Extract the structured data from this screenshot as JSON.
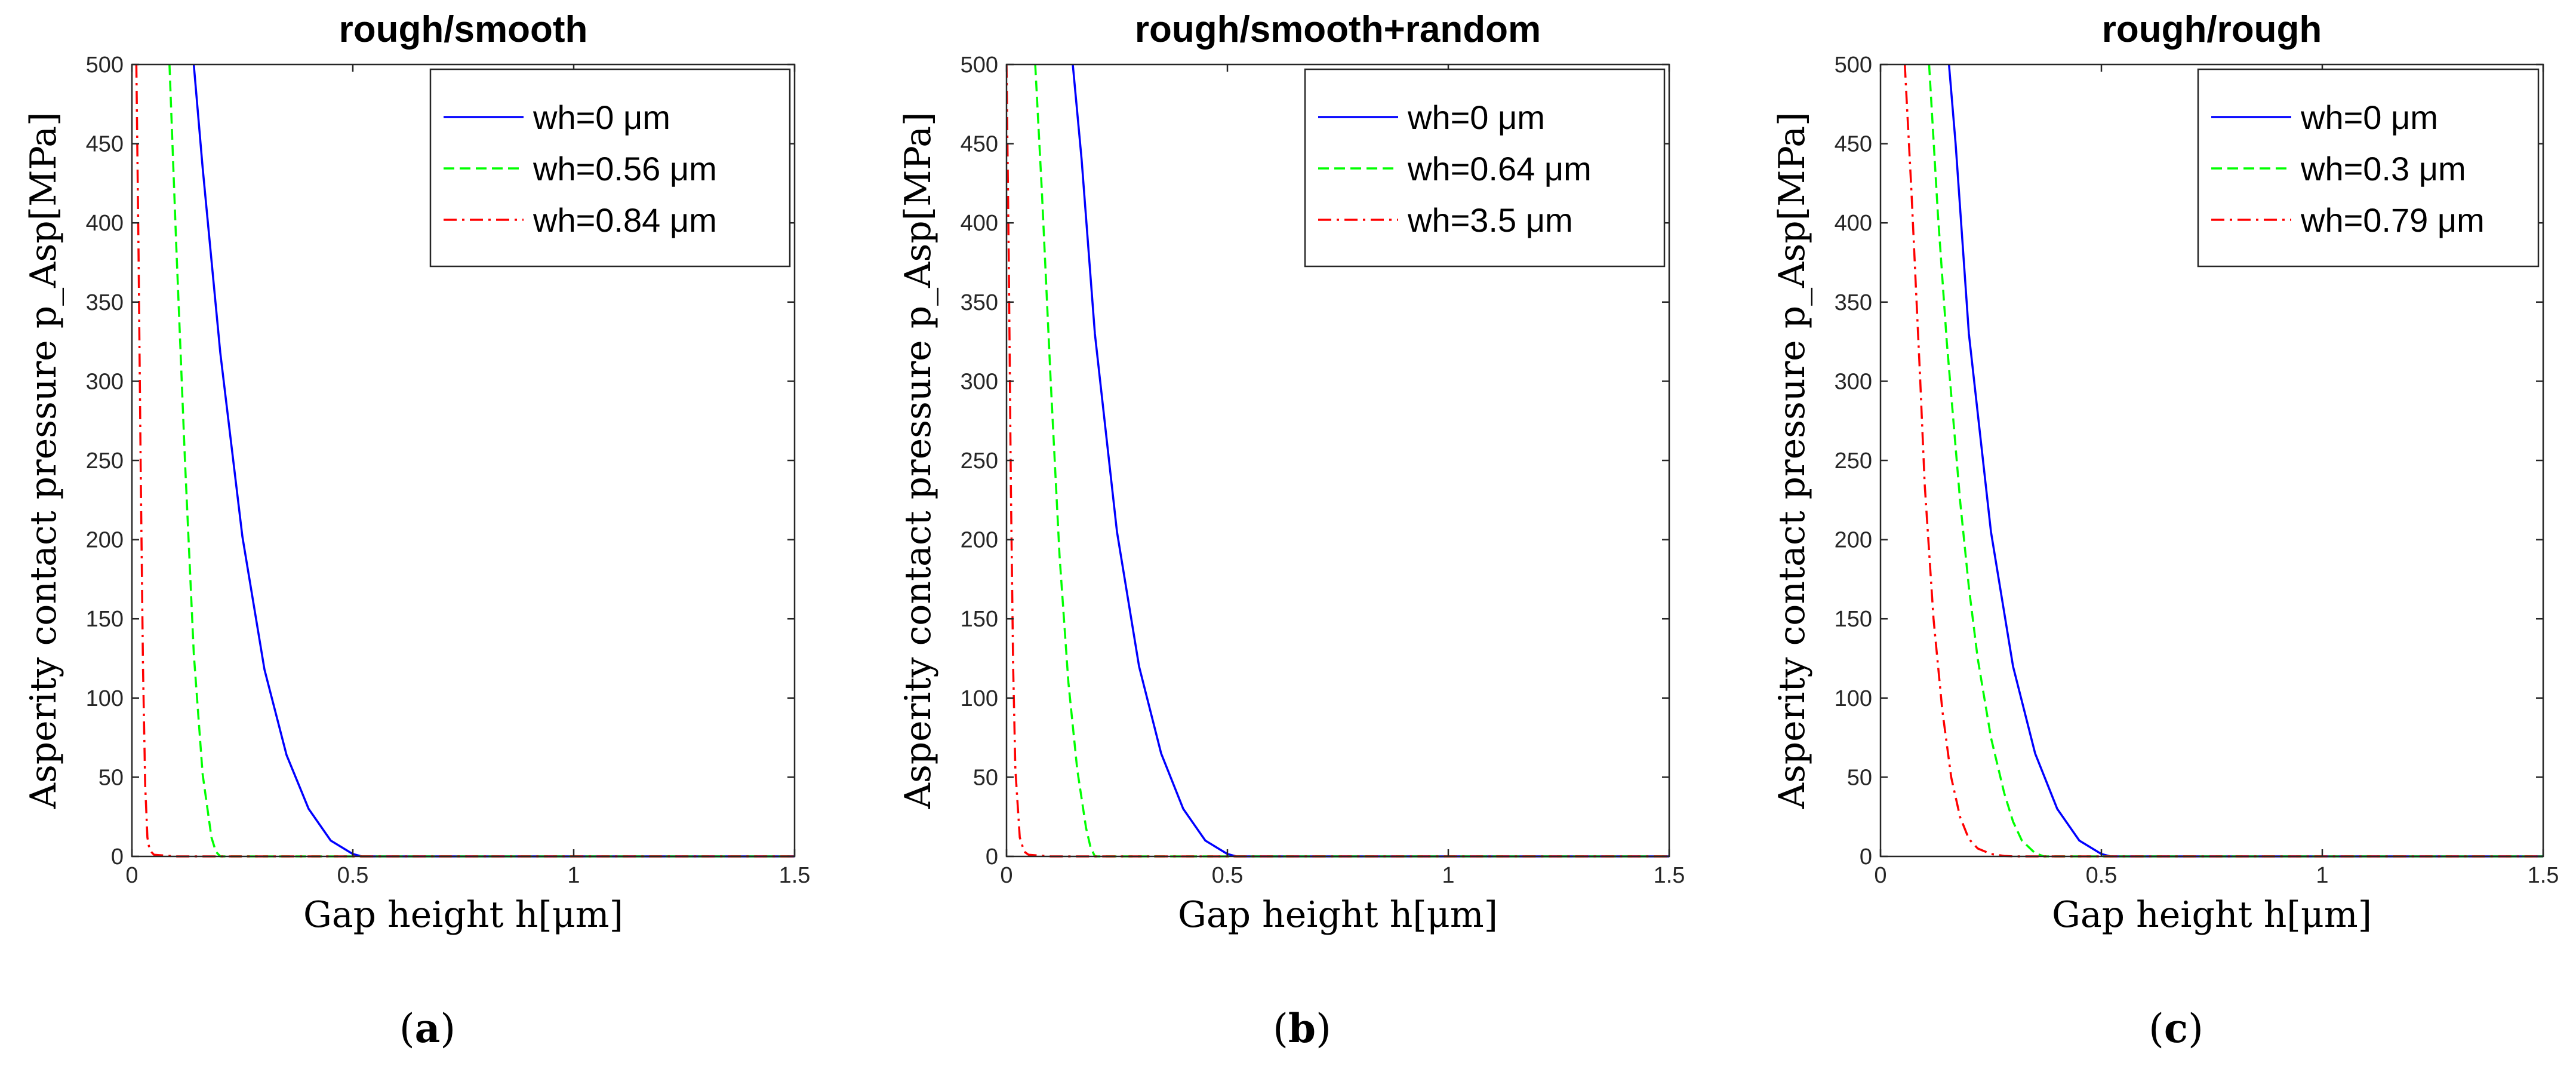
{
  "figure": {
    "panels": [
      {
        "caption_letter": "a"
      },
      {
        "caption_letter": "b"
      },
      {
        "caption_letter": "c"
      }
    ]
  },
  "chart_data": [
    {
      "type": "line",
      "title": "rough/smooth",
      "xlabel": "Gap height h[μm]",
      "ylabel": "Asperity contact pressure p_Asp[MPa]",
      "xlim": [
        0,
        1.5
      ],
      "ylim": [
        0,
        500
      ],
      "xticks": [
        "0",
        "0.5",
        "1",
        "1.5"
      ],
      "yticks": [
        "0",
        "50",
        "100",
        "150",
        "200",
        "250",
        "300",
        "350",
        "400",
        "450",
        "500"
      ],
      "legend_position": "top-right",
      "series": [
        {
          "name": "wh=0 μm",
          "color": "#0000ff",
          "style": "solid",
          "x": [
            0.14,
            0.16,
            0.2,
            0.25,
            0.3,
            0.35,
            0.4,
            0.45,
            0.5,
            0.52,
            0.6,
            0.8,
            1.0,
            1.2,
            1.5
          ],
          "y": [
            500,
            435,
            318,
            202,
            118,
            64,
            30,
            10,
            1.5,
            0,
            0,
            0,
            0,
            0,
            0
          ]
        },
        {
          "name": "wh=0.56 μm",
          "color": "#00ff00",
          "style": "dashed",
          "x": [
            0.085,
            0.1,
            0.12,
            0.14,
            0.16,
            0.18,
            0.19,
            0.2,
            0.3,
            0.5,
            0.8,
            1.0,
            1.2,
            1.5
          ],
          "y": [
            500,
            388,
            250,
            128,
            52,
            12,
            3,
            0,
            0,
            0,
            0,
            0,
            0,
            0
          ]
        },
        {
          "name": "wh=0.84 μm",
          "color": "#ff0000",
          "style": "dashdot",
          "x": [
            0.01,
            0.015,
            0.02,
            0.025,
            0.03,
            0.035,
            0.04,
            0.05,
            0.1,
            0.3,
            0.6,
            1.0,
            1.5
          ],
          "y": [
            500,
            380,
            240,
            120,
            45,
            12,
            4,
            1,
            0,
            0,
            0,
            0,
            0
          ]
        }
      ]
    },
    {
      "type": "line",
      "title": "rough/smooth+random",
      "xlabel": "Gap height h[μm]",
      "ylabel": "Asperity contact pressure p_Asp[MPa]",
      "xlim": [
        0,
        1.5
      ],
      "ylim": [
        0,
        500
      ],
      "xticks": [
        "0",
        "0.5",
        "1",
        "1.5"
      ],
      "yticks": [
        "0",
        "50",
        "100",
        "150",
        "200",
        "250",
        "300",
        "350",
        "400",
        "450",
        "500"
      ],
      "legend_position": "top-right",
      "series": [
        {
          "name": "wh=0 μm",
          "color": "#0000ff",
          "style": "solid",
          "x": [
            0.15,
            0.17,
            0.2,
            0.25,
            0.3,
            0.35,
            0.4,
            0.45,
            0.5,
            0.52,
            0.6,
            0.8,
            1.0,
            1.2,
            1.5
          ],
          "y": [
            500,
            440,
            330,
            205,
            120,
            65,
            30,
            10,
            1.5,
            0,
            0,
            0,
            0,
            0,
            0
          ]
        },
        {
          "name": "wh=0.64 μm",
          "color": "#00ff00",
          "style": "dashed",
          "x": [
            0.065,
            0.08,
            0.1,
            0.12,
            0.14,
            0.16,
            0.18,
            0.19,
            0.2,
            0.3,
            0.5,
            0.8,
            1.0,
            1.2,
            1.5
          ],
          "y": [
            500,
            420,
            300,
            190,
            110,
            55,
            18,
            6,
            0,
            0,
            0,
            0,
            0,
            0,
            0
          ]
        },
        {
          "name": "wh=3.5 μm",
          "color": "#ff0000",
          "style": "dashdot",
          "x": [
            0.0,
            0.005,
            0.01,
            0.015,
            0.02,
            0.03,
            0.04,
            0.05,
            0.1,
            0.3,
            0.6,
            1.0,
            1.5
          ],
          "y": [
            500,
            380,
            230,
            120,
            55,
            12,
            3,
            1,
            0,
            0,
            0,
            0,
            0
          ]
        }
      ]
    },
    {
      "type": "line",
      "title": "rough/rough",
      "xlabel": "Gap height h[μm]",
      "ylabel": "Asperity contact pressure p_Asp[MPa]",
      "xlim": [
        0,
        1.5
      ],
      "ylim": [
        0,
        500
      ],
      "xticks": [
        "0",
        "0.5",
        "1",
        "1.5"
      ],
      "yticks": [
        "0",
        "50",
        "100",
        "150",
        "200",
        "250",
        "300",
        "350",
        "400",
        "450",
        "500"
      ],
      "legend_position": "top-right",
      "series": [
        {
          "name": "wh=0 μm",
          "color": "#0000ff",
          "style": "solid",
          "x": [
            0.155,
            0.17,
            0.2,
            0.25,
            0.3,
            0.35,
            0.4,
            0.45,
            0.5,
            0.52,
            0.6,
            0.8,
            1.0,
            1.2,
            1.5
          ],
          "y": [
            500,
            450,
            330,
            205,
            120,
            65,
            30,
            10,
            1.5,
            0,
            0,
            0,
            0,
            0,
            0
          ]
        },
        {
          "name": "wh=0.3 μm",
          "color": "#00ff00",
          "style": "dashed",
          "x": [
            0.11,
            0.13,
            0.15,
            0.18,
            0.2,
            0.22,
            0.25,
            0.28,
            0.3,
            0.32,
            0.35,
            0.37,
            0.5,
            0.8,
            1.0,
            1.2,
            1.5
          ],
          "y": [
            500,
            405,
            325,
            225,
            170,
            125,
            75,
            40,
            22,
            10,
            2,
            0,
            0,
            0,
            0,
            0,
            0
          ]
        },
        {
          "name": "wh=0.79 μm",
          "color": "#ff0000",
          "style": "dashdot",
          "x": [
            0.055,
            0.07,
            0.09,
            0.1,
            0.12,
            0.14,
            0.16,
            0.18,
            0.2,
            0.22,
            0.25,
            0.28,
            0.3,
            0.5,
            0.8,
            1.0,
            1.2,
            1.5
          ],
          "y": [
            500,
            420,
            300,
            235,
            150,
            92,
            50,
            25,
            11,
            5,
            1.5,
            0.3,
            0,
            0,
            0,
            0,
            0,
            0
          ]
        }
      ]
    }
  ]
}
